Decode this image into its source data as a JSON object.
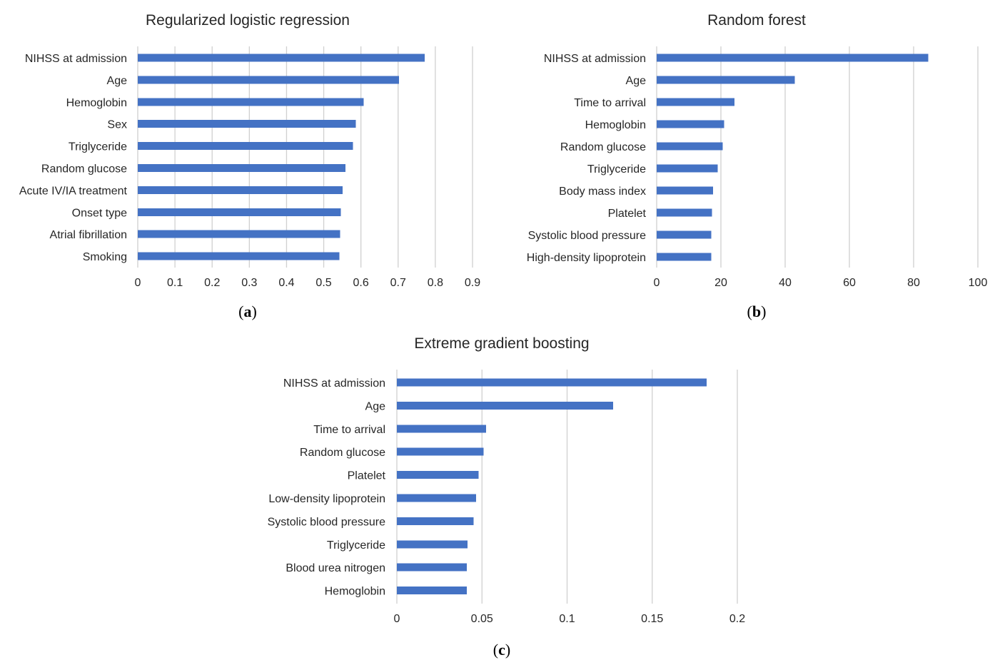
{
  "colors": {
    "bar": "#4472c4",
    "grid": "#d0d0d0",
    "text": "#262626"
  },
  "chart_data": [
    {
      "type": "bar",
      "orientation": "horizontal",
      "title": "Regularized logistic regression",
      "panel_label": "a",
      "categories": [
        "NIHSS at admission",
        "Age",
        "Hemoglobin",
        "Sex",
        "Triglyceride",
        "Random glucose",
        "Acute IV/IA treatment",
        "Onset type",
        "Atrial fibrillation",
        "Smoking"
      ],
      "values": [
        0.771,
        0.702,
        0.607,
        0.586,
        0.579,
        0.558,
        0.551,
        0.546,
        0.544,
        0.542
      ],
      "xlim": [
        0,
        0.9
      ],
      "xticks": [
        0,
        0.1,
        0.2,
        0.3,
        0.4,
        0.5,
        0.6,
        0.7,
        0.8,
        0.9
      ],
      "xtick_labels": [
        "0",
        "0.1",
        "0.2",
        "0.3",
        "0.4",
        "0.5",
        "0.6",
        "0.7",
        "0.8",
        "0.9"
      ],
      "grid": true
    },
    {
      "type": "bar",
      "orientation": "horizontal",
      "title": "Random forest",
      "panel_label": "b",
      "categories": [
        "NIHSS at admission",
        "Age",
        "Time to arrival",
        "Hemoglobin",
        "Random glucose",
        "Triglyceride",
        "Body mass index",
        "Platelet",
        "Systolic blood pressure",
        "High-density lipoprotein"
      ],
      "values": [
        84.5,
        43,
        24.2,
        21,
        20.5,
        19,
        17.5,
        17.2,
        17,
        17
      ],
      "xlim": [
        0,
        100
      ],
      "xticks": [
        0,
        20,
        40,
        60,
        80,
        100
      ],
      "xtick_labels": [
        "0",
        "20",
        "40",
        "60",
        "80",
        "100"
      ],
      "grid": true
    },
    {
      "type": "bar",
      "orientation": "horizontal",
      "title": "Extreme gradient boosting",
      "panel_label": "c",
      "categories": [
        "NIHSS at admission",
        "Age",
        "Time to arrival",
        "Random glucose",
        "Platelet",
        "Low-density lipoprotein",
        "Systolic blood pressure",
        "Triglyceride",
        "Blood urea nitrogen",
        "Hemoglobin"
      ],
      "values": [
        0.182,
        0.127,
        0.0525,
        0.051,
        0.048,
        0.0465,
        0.045,
        0.0415,
        0.041,
        0.041
      ],
      "xlim": [
        0,
        0.2
      ],
      "xticks": [
        0,
        0.05,
        0.1,
        0.15,
        0.2
      ],
      "xtick_labels": [
        "0",
        "0.05",
        "0.1",
        "0.15",
        "0.2"
      ],
      "grid": true
    }
  ]
}
